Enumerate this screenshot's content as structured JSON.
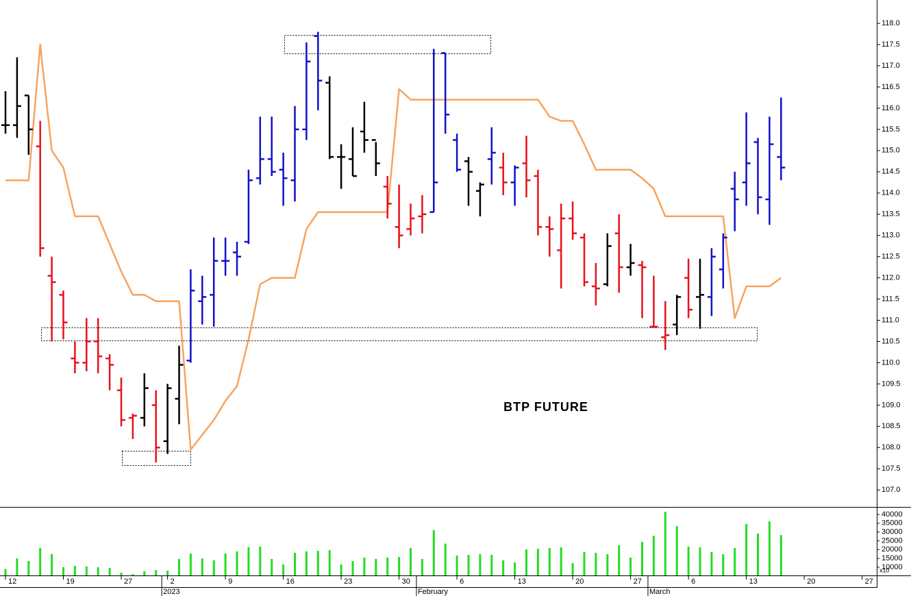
{
  "chart_data": {
    "type": "ohlc",
    "annotation": "BTP FUTURE",
    "categories": [
      "12",
      null,
      null,
      null,
      null,
      "19",
      null,
      null,
      null,
      null,
      "27",
      null,
      null,
      null,
      "2",
      null,
      null,
      null,
      null,
      "9",
      null,
      null,
      null,
      null,
      "16",
      null,
      null,
      null,
      null,
      "23",
      null,
      null,
      null,
      null,
      "30",
      null,
      null,
      null,
      null,
      "6",
      null,
      null,
      null,
      null,
      "13",
      null,
      null,
      null,
      null,
      "20",
      null,
      null,
      null,
      null,
      "27",
      null,
      null,
      null,
      null,
      "6",
      null,
      null,
      null,
      null,
      "13",
      null,
      null,
      null,
      null,
      "20",
      null,
      null,
      null,
      null,
      "27",
      null
    ],
    "months": [
      null,
      null,
      null,
      null,
      null,
      null,
      null,
      null,
      null,
      null,
      null,
      null,
      null,
      null,
      "2023",
      null,
      null,
      null,
      null,
      null,
      null,
      null,
      null,
      null,
      null,
      null,
      null,
      null,
      null,
      null,
      null,
      null,
      null,
      null,
      null,
      null,
      "February",
      null,
      null,
      null,
      null,
      null,
      null,
      null,
      null,
      null,
      null,
      null,
      null,
      null,
      null,
      null,
      null,
      null,
      null,
      null,
      "March",
      null,
      null,
      null,
      null,
      null,
      null,
      null,
      null,
      null,
      null,
      null,
      null,
      null,
      null,
      null,
      null,
      null,
      null,
      null
    ],
    "open": [
      115.6,
      115.6,
      116.3,
      115.1,
      112.05,
      111.6,
      110.1,
      110.0,
      110.5,
      110.1,
      109.35,
      108.7,
      108.7,
      109.0,
      108.15,
      109.15,
      110.05,
      111.45,
      111.6,
      112.4,
      112.6,
      112.85,
      114.35,
      114.8,
      114.55,
      114.3,
      115.5,
      117.7,
      116.6,
      114.85,
      114.8,
      115.45,
      115.25,
      114.15,
      113.2,
      113.15,
      113.45,
      113.55,
      117.3,
      115.25,
      114.75,
      114.05,
      114.8,
      114.6,
      114.25,
      114.7,
      114.4,
      113.2,
      112.65,
      113.4,
      112.95,
      111.8,
      111.85,
      113.05,
      112.25,
      112.3,
      110.85,
      110.6,
      110.9,
      112.0,
      111.55,
      111.55,
      112.2,
      114.1,
      114.25,
      115.2,
      113.85,
      114.85,
      null,
      null,
      null,
      null,
      null,
      null,
      null,
      null
    ],
    "high": [
      116.4,
      117.2,
      116.3,
      115.7,
      112.5,
      111.7,
      110.5,
      111.05,
      111.05,
      110.2,
      109.65,
      108.8,
      109.75,
      109.35,
      109.5,
      110.4,
      112.2,
      112.05,
      112.95,
      112.95,
      112.85,
      114.55,
      115.8,
      115.8,
      114.95,
      116.05,
      117.55,
      117.8,
      116.75,
      115.15,
      115.55,
      116.15,
      115.2,
      114.4,
      114.2,
      113.75,
      113.95,
      117.4,
      117.3,
      115.4,
      114.85,
      114.25,
      115.55,
      114.95,
      114.65,
      115.35,
      114.55,
      113.45,
      113.75,
      113.8,
      113.05,
      112.35,
      113.05,
      113.5,
      112.8,
      112.4,
      112.05,
      111.45,
      111.6,
      112.45,
      112.45,
      112.7,
      113.05,
      114.5,
      115.9,
      115.3,
      115.8,
      116.25,
      null,
      null,
      null,
      null,
      null,
      null,
      null,
      null
    ],
    "low": [
      115.4,
      115.3,
      114.9,
      112.5,
      110.5,
      110.55,
      109.75,
      109.8,
      109.75,
      109.35,
      108.5,
      108.2,
      108.5,
      107.65,
      107.85,
      108.55,
      110.0,
      110.9,
      110.85,
      112.05,
      112.05,
      112.8,
      114.2,
      114.4,
      113.7,
      113.8,
      115.25,
      115.95,
      114.8,
      114.1,
      114.4,
      114.95,
      114.4,
      113.4,
      112.7,
      113.0,
      113.05,
      113.55,
      115.4,
      114.5,
      113.7,
      113.45,
      114.2,
      113.95,
      113.7,
      113.9,
      113.0,
      112.5,
      111.75,
      112.9,
      111.8,
      111.35,
      111.8,
      111.65,
      112.05,
      111.05,
      110.85,
      110.3,
      110.65,
      111.05,
      110.8,
      111.1,
      111.75,
      113.1,
      113.7,
      113.5,
      113.25,
      114.3,
      null,
      null,
      null,
      null,
      null,
      null,
      null,
      null
    ],
    "close": [
      115.6,
      116.05,
      115.5,
      112.7,
      111.9,
      110.95,
      110.0,
      110.5,
      110.15,
      109.95,
      108.65,
      108.75,
      109.4,
      108.0,
      109.4,
      109.95,
      111.7,
      111.55,
      112.4,
      112.4,
      112.5,
      114.3,
      114.8,
      114.5,
      114.35,
      115.5,
      117.1,
      116.65,
      114.85,
      114.85,
      114.4,
      115.25,
      114.7,
      113.75,
      113.0,
      113.4,
      113.5,
      114.25,
      115.85,
      114.55,
      114.5,
      114.2,
      114.95,
      114.25,
      114.6,
      114.3,
      113.2,
      113.15,
      113.4,
      113.05,
      111.9,
      111.75,
      112.75,
      112.25,
      112.35,
      112.25,
      110.85,
      110.65,
      111.55,
      111.25,
      111.6,
      112.5,
      112.95,
      113.85,
      114.7,
      113.9,
      115.15,
      114.6,
      null,
      null,
      null,
      null,
      null,
      null,
      null,
      null
    ],
    "colors": [
      "#000000",
      "#000000",
      "#000000",
      "#e8101a",
      "#e8101a",
      "#e8101a",
      "#e8101a",
      "#e8101a",
      "#e8101a",
      "#e8101a",
      "#e8101a",
      "#e8101a",
      "#000000",
      "#e8101a",
      "#000000",
      "#000000",
      "#1010c8",
      "#1010c8",
      "#1010c8",
      "#1010c8",
      "#1010c8",
      "#1010c8",
      "#1010c8",
      "#1010c8",
      "#1010c8",
      "#1010c8",
      "#1010c8",
      "#1010c8",
      "#000000",
      "#000000",
      "#000000",
      "#000000",
      "#000000",
      "#e8101a",
      "#e8101a",
      "#e8101a",
      "#e8101a",
      "#1010c8",
      "#1010c8",
      "#1010c8",
      "#000000",
      "#000000",
      "#1010c8",
      "#e8101a",
      "#1010c8",
      "#e8101a",
      "#e8101a",
      "#e8101a",
      "#e8101a",
      "#e8101a",
      "#e8101a",
      "#e8101a",
      "#000000",
      "#e8101a",
      "#000000",
      "#e8101a",
      "#e8101a",
      "#e8101a",
      "#000000",
      "#e8101a",
      "#000000",
      "#1010c8",
      "#1010c8",
      "#1010c8",
      "#1010c8",
      "#1010c8",
      "#1010c8",
      "#1010c8",
      null,
      null,
      null,
      null,
      null,
      null,
      null,
      null
    ],
    "line": {
      "color": "#f7a35c",
      "values": [
        114.3,
        114.3,
        114.3,
        117.5,
        115.0,
        114.6,
        113.45,
        113.45,
        113.45,
        112.8,
        112.15,
        111.6,
        111.6,
        111.45,
        111.45,
        111.45,
        107.95,
        108.3,
        108.65,
        109.1,
        109.45,
        110.55,
        111.85,
        112.0,
        112.0,
        112.0,
        113.15,
        113.55,
        113.55,
        113.55,
        113.55,
        113.55,
        113.55,
        113.55,
        116.45,
        116.2,
        116.2,
        116.2,
        116.2,
        116.2,
        116.2,
        116.2,
        116.2,
        116.2,
        116.2,
        116.2,
        116.2,
        115.8,
        115.7,
        115.7,
        115.15,
        114.55,
        114.55,
        114.55,
        114.55,
        114.35,
        114.1,
        113.45,
        113.45,
        113.45,
        113.45,
        113.45,
        113.45,
        111.05,
        111.8,
        111.8,
        111.8,
        112.0,
        null,
        null,
        null,
        null,
        null,
        null,
        null,
        null
      ]
    },
    "ylim": [
      106.6,
      118.55
    ],
    "yticks": [
      {
        "value": 107,
        "label": "107.0"
      },
      107.5,
      {
        "value": 108,
        "label": "108.0"
      },
      108.5,
      {
        "value": 109,
        "label": "109.0"
      },
      109.5,
      {
        "value": 110,
        "label": "110.0"
      },
      110.5,
      {
        "value": 111,
        "label": "111.0"
      },
      111.5,
      {
        "value": 112,
        "label": "112.0"
      },
      112.5,
      {
        "value": 113,
        "label": "113.0"
      },
      113.5,
      {
        "value": 114,
        "label": "114.0"
      },
      114.5,
      {
        "value": 115,
        "label": "115.0"
      },
      115.5,
      {
        "value": 116,
        "label": "116.0"
      },
      116.5,
      {
        "value": 117,
        "label": "117.0"
      },
      117.5,
      {
        "value": 118,
        "label": "118.0"
      }
    ],
    "volume": {
      "type": "bar",
      "color": "#22dd22",
      "unit_label": "x10",
      "values": [
        9000,
        15000,
        13500,
        21000,
        17500,
        10000,
        10800,
        10400,
        10000,
        9600,
        6900,
        6100,
        7700,
        8400,
        8000,
        14700,
        17800,
        15000,
        13900,
        17800,
        19000,
        21400,
        21700,
        14700,
        11600,
        18200,
        19000,
        19300,
        19700,
        11600,
        13500,
        15500,
        14700,
        15500,
        15800,
        20900,
        14700,
        31100,
        23400,
        16600,
        17000,
        17400,
        17000,
        13900,
        12700,
        20100,
        20500,
        20900,
        21300,
        12300,
        18600,
        18200,
        17400,
        22500,
        15500,
        24400,
        27900,
        41500,
        33300,
        21700,
        21300,
        18600,
        17400,
        20900,
        34600,
        29100,
        36100,
        28300,
        null,
        null,
        null,
        null,
        null,
        null,
        null,
        null
      ],
      "ylim": [
        5300,
        43900
      ],
      "yticks": [
        10000,
        15000,
        20000,
        25000,
        30000,
        35000,
        40000
      ]
    }
  }
}
